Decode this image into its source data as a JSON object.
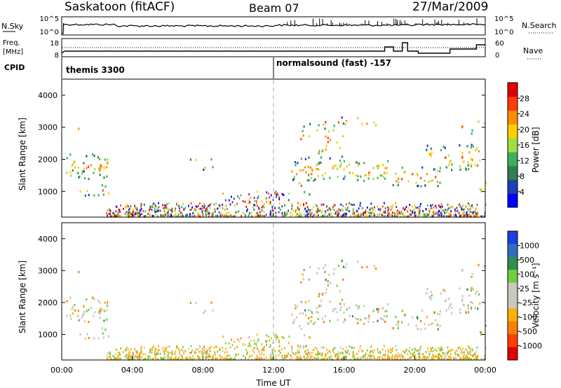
{
  "header": {
    "site": "Saskatoon (fitACF)",
    "beam": "Beam 07",
    "date": "27/Mar/2009"
  },
  "noise_panel": {
    "left_label": "N.Sky",
    "left_ticks": [
      "10^5",
      "10^0"
    ],
    "right_label": "N.Search",
    "right_ticks": [
      "10^5",
      "10^0"
    ]
  },
  "freq_panel": {
    "left_label_1": "Freq.",
    "left_label_2": "[MHz]",
    "left_ticks": [
      "18",
      "8"
    ],
    "right_label": "Nave",
    "right_ticks": [
      "60",
      "0"
    ]
  },
  "cpid": {
    "label": "CPID",
    "segments": [
      {
        "start_hour": 0.0,
        "text": "themis 3300"
      },
      {
        "start_hour": 12.0,
        "text": "normalsound (fast) -157"
      }
    ]
  },
  "colors": {
    "power_scale": [
      "#0000ff",
      "#1f3fb4",
      "#2f7f4f",
      "#3faf5f",
      "#9fdf3f",
      "#ffcf00",
      "#ff8f00",
      "#ff3f00",
      "#e00000"
    ],
    "velocity_scale": [
      "#1f3fdf",
      "#2f6fbf",
      "#2f8f4f",
      "#6fcf3f",
      "#c8c8c0",
      "#c8c8c0",
      "#ffaf00",
      "#ff7f00",
      "#ff3f00",
      "#e00000"
    ],
    "ground_scatter": "#c8c8c0"
  },
  "chart_data": [
    {
      "type": "heatmap",
      "name": "power",
      "ylabel": "Slant Range [km]",
      "yticks": [
        "1000",
        "2000",
        "3000",
        "4000"
      ],
      "ylim": [
        200,
        4500
      ],
      "xlim": [
        0,
        24
      ],
      "colorbar_label": "Power [dB]",
      "colorbar_ticks": [
        "4",
        "8",
        "12",
        "16",
        "20",
        "24",
        "28"
      ],
      "colorbar_range": [
        0,
        32
      ]
    },
    {
      "type": "heatmap",
      "name": "velocity",
      "ylabel": "Slant Range [km]",
      "yticks": [
        "1000",
        "2000",
        "3000",
        "4000"
      ],
      "ylim": [
        200,
        4500
      ],
      "xlim": [
        0,
        24
      ],
      "xlabel": "Time UT",
      "xticks": [
        "00:00",
        "04:00",
        "08:00",
        "12:00",
        "16:00",
        "20:00",
        "00:00"
      ],
      "colorbar_label": "Velocity [m s⁻¹]",
      "colorbar_ticks": [
        "1000",
        "500",
        "100",
        "25",
        "-25",
        "-100",
        "-500",
        "-1000"
      ]
    }
  ]
}
